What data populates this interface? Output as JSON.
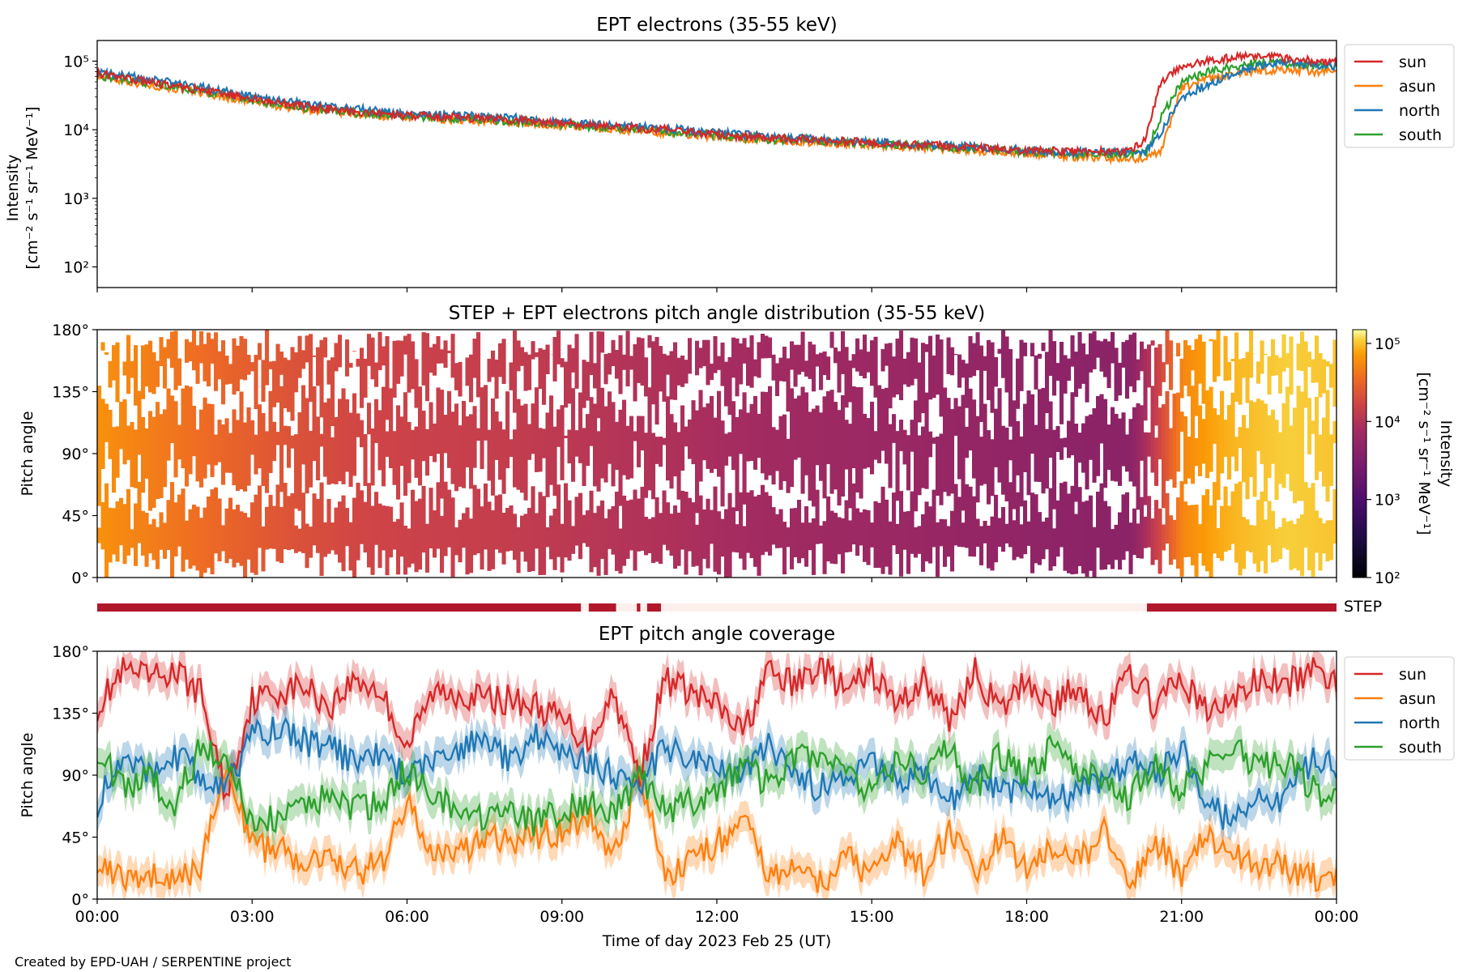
{
  "colors": {
    "sun": "#d62728",
    "asun": "#ff7f0e",
    "north": "#1f77b4",
    "south": "#2ca02c",
    "step_bar": "#b2182b",
    "step_gap": "#fdf0ec"
  },
  "footer": "Created by EPD-UAH / SERPENTINE project",
  "xaxis": {
    "label": "Time of day 2023 Feb 25 (UT)",
    "range_hours": [
      0,
      24
    ],
    "ticks": [
      {
        "h": 0,
        "label": "00:00"
      },
      {
        "h": 3,
        "label": "03:00"
      },
      {
        "h": 6,
        "label": "06:00"
      },
      {
        "h": 9,
        "label": "09:00"
      },
      {
        "h": 12,
        "label": "12:00"
      },
      {
        "h": 15,
        "label": "15:00"
      },
      {
        "h": 18,
        "label": "18:00"
      },
      {
        "h": 21,
        "label": "21:00"
      },
      {
        "h": 24,
        "label": "00:00"
      }
    ]
  },
  "chart_data": [
    {
      "type": "line",
      "title": "EPT electrons (35-55 keV)",
      "ylabel_line1": "Intensity",
      "ylabel_line2": "[cm⁻² s⁻¹ sr⁻¹ MeV⁻¹]",
      "yscale": "log",
      "ylim": [
        50,
        200000
      ],
      "yticks": [
        {
          "v": 100,
          "label": "10²"
        },
        {
          "v": 1000,
          "label": "10³"
        },
        {
          "v": 10000,
          "label": "10⁴"
        },
        {
          "v": 100000,
          "label": "10⁵"
        }
      ],
      "legend_position": "outside-right",
      "x_hours": [
        0,
        1,
        2,
        3,
        4,
        5,
        6,
        7,
        8,
        9,
        10,
        11,
        12,
        13,
        14,
        15,
        16,
        17,
        18,
        19,
        20,
        20.3,
        20.6,
        21,
        21.5,
        22,
        22.5,
        23,
        24
      ],
      "series": [
        {
          "name": "sun",
          "color_key": "sun",
          "values": [
            65000,
            50000,
            38000,
            28000,
            22000,
            18000,
            16000,
            15000,
            14000,
            12500,
            11000,
            10000,
            8500,
            7500,
            7000,
            6500,
            6000,
            5500,
            5000,
            4800,
            4800,
            7000,
            50000,
            80000,
            100000,
            115000,
            120000,
            110000,
            95000
          ]
        },
        {
          "name": "asun",
          "color_key": "asun",
          "values": [
            60000,
            45000,
            35000,
            25000,
            20000,
            17000,
            15000,
            14000,
            13000,
            11500,
            10000,
            9000,
            8000,
            7000,
            6500,
            6000,
            5500,
            5000,
            4500,
            4000,
            3800,
            3800,
            5000,
            40000,
            55000,
            65000,
            72000,
            75000,
            68000
          ]
        },
        {
          "name": "north",
          "color_key": "north",
          "values": [
            68000,
            55000,
            42000,
            30000,
            24000,
            20000,
            17000,
            16000,
            15000,
            13000,
            11500,
            10500,
            9000,
            8000,
            7200,
            6700,
            6100,
            5600,
            5000,
            4700,
            4600,
            4800,
            9000,
            30000,
            45000,
            65000,
            85000,
            95000,
            85000
          ]
        },
        {
          "name": "south",
          "color_key": "south",
          "values": [
            62000,
            48000,
            37000,
            27000,
            21000,
            17500,
            15500,
            14500,
            13500,
            12000,
            10500,
            9500,
            8300,
            7300,
            6800,
            6300,
            5800,
            5300,
            4800,
            4500,
            4400,
            4500,
            15000,
            50000,
            70000,
            85000,
            95000,
            92000,
            82000
          ]
        }
      ]
    },
    {
      "type": "heatmap",
      "title": "STEP + EPT electrons pitch angle distribution (35-55 keV)",
      "ylabel": "Pitch angle",
      "ylim": [
        0,
        180
      ],
      "yticks": [
        {
          "v": 0,
          "label": "0°"
        },
        {
          "v": 45,
          "label": "45°"
        },
        {
          "v": 90,
          "label": "90°"
        },
        {
          "v": 135,
          "label": "135°"
        },
        {
          "v": 180,
          "label": "180°"
        }
      ],
      "colorbar": {
        "label_line1": "Intensity",
        "label_line2": "[cm⁻² s⁻¹ sr⁻¹ MeV⁻¹]",
        "scale": "log",
        "range": [
          100,
          150000
        ],
        "ticks": [
          {
            "v": 100,
            "label": "10²"
          },
          {
            "v": 1000,
            "label": "10³"
          },
          {
            "v": 10000,
            "label": "10⁴"
          },
          {
            "v": 100000,
            "label": "10⁵"
          }
        ],
        "colormap": "inferno"
      },
      "x_hours": [
        0,
        1,
        2,
        3,
        4,
        5,
        6,
        7,
        8,
        9,
        10,
        11,
        12,
        13,
        14,
        15,
        16,
        17,
        18,
        19,
        20,
        20.6,
        21,
        21.5,
        22,
        22.5,
        23,
        24
      ],
      "intensity": [
        62000,
        47000,
        36000,
        27000,
        21000,
        17500,
        15500,
        14500,
        13500,
        12000,
        10500,
        9500,
        8300,
        7300,
        6800,
        6300,
        5800,
        5300,
        4800,
        4500,
        4400,
        20000,
        55000,
        75000,
        90000,
        100000,
        110000,
        100000
      ]
    },
    {
      "type": "bar",
      "title": "",
      "label": "STEP",
      "step_segments": [
        {
          "start_h": 0.0,
          "end_h": 9.37,
          "state": "on"
        },
        {
          "start_h": 9.37,
          "end_h": 9.52,
          "state": "off"
        },
        {
          "start_h": 9.52,
          "end_h": 10.05,
          "state": "on"
        },
        {
          "start_h": 10.05,
          "end_h": 10.45,
          "state": "off"
        },
        {
          "start_h": 10.45,
          "end_h": 10.52,
          "state": "on"
        },
        {
          "start_h": 10.52,
          "end_h": 10.65,
          "state": "off"
        },
        {
          "start_h": 10.65,
          "end_h": 10.92,
          "state": "on"
        },
        {
          "start_h": 10.92,
          "end_h": 20.33,
          "state": "off"
        },
        {
          "start_h": 20.33,
          "end_h": 24.0,
          "state": "on"
        }
      ]
    },
    {
      "type": "line",
      "title": "EPT pitch angle coverage",
      "ylabel": "Pitch angle",
      "ylim": [
        0,
        180
      ],
      "yticks": [
        {
          "v": 0,
          "label": "0°"
        },
        {
          "v": 45,
          "label": "45°"
        },
        {
          "v": 90,
          "label": "90°"
        },
        {
          "v": 135,
          "label": "135°"
        },
        {
          "v": 180,
          "label": "180°"
        }
      ],
      "legend_position": "outside-right",
      "x_hours": [
        0,
        0.5,
        1,
        1.5,
        2,
        2.5,
        3,
        3.5,
        4,
        4.5,
        5,
        5.5,
        6,
        6.5,
        7,
        7.5,
        8,
        8.5,
        9,
        9.5,
        10,
        10.5,
        11,
        11.5,
        12,
        12.5,
        13,
        13.5,
        14,
        14.5,
        15,
        15.5,
        16,
        16.5,
        17,
        17.5,
        18,
        18.5,
        19,
        19.5,
        20,
        20.5,
        21,
        21.5,
        22,
        22.5,
        23,
        23.5,
        24
      ],
      "series": [
        {
          "name": "sun",
          "color_key": "sun",
          "values": [
            140,
            165,
            160,
            165,
            150,
            75,
            145,
            150,
            155,
            140,
            160,
            150,
            110,
            150,
            150,
            145,
            145,
            140,
            130,
            115,
            150,
            90,
            160,
            150,
            140,
            120,
            165,
            155,
            170,
            150,
            165,
            140,
            160,
            130,
            165,
            135,
            160,
            140,
            155,
            130,
            165,
            140,
            160,
            135,
            145,
            160,
            155,
            165,
            160
          ]
        },
        {
          "name": "asun",
          "color_key": "asun",
          "values": [
            30,
            15,
            20,
            10,
            25,
            100,
            40,
            35,
            30,
            35,
            20,
            25,
            70,
            35,
            30,
            45,
            40,
            45,
            50,
            60,
            30,
            90,
            15,
            30,
            40,
            60,
            15,
            25,
            10,
            30,
            15,
            40,
            20,
            50,
            15,
            45,
            20,
            40,
            25,
            50,
            15,
            40,
            20,
            45,
            35,
            20,
            25,
            15,
            20
          ]
        },
        {
          "name": "north",
          "color_key": "north",
          "values": [
            70,
            100,
            95,
            105,
            90,
            80,
            120,
            125,
            115,
            110,
            100,
            105,
            90,
            100,
            110,
            115,
            100,
            120,
            110,
            100,
            90,
            85,
            110,
            100,
            95,
            90,
            110,
            90,
            80,
            90,
            100,
            85,
            95,
            70,
            95,
            75,
            85,
            70,
            80,
            90,
            100,
            90,
            110,
            70,
            55,
            80,
            70,
            100,
            95
          ]
        },
        {
          "name": "south",
          "color_key": "south",
          "values": [
            110,
            80,
            90,
            70,
            110,
            105,
            55,
            60,
            65,
            75,
            65,
            70,
            95,
            75,
            65,
            55,
            60,
            55,
            65,
            70,
            60,
            90,
            65,
            70,
            80,
            95,
            85,
            100,
            105,
            95,
            75,
            100,
            90,
            110,
            80,
            105,
            90,
            110,
            95,
            80,
            75,
            100,
            80,
            95,
            110,
            95,
            100,
            80,
            75
          ]
        }
      ]
    }
  ]
}
